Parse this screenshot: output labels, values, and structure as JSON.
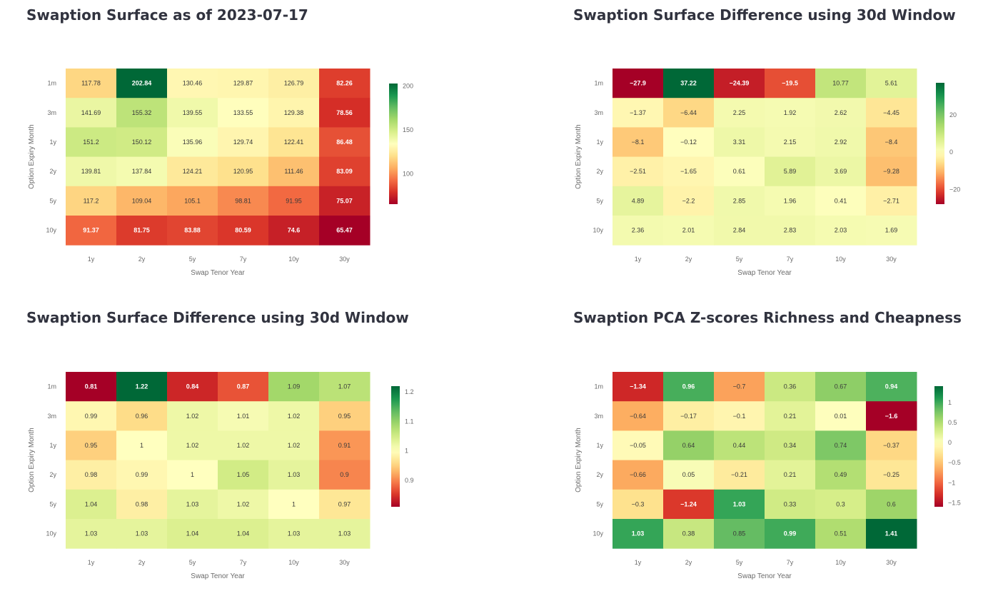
{
  "page": {
    "heatmaps": [
      {
        "id": "surface",
        "title": "Swaption Surface as of 2023-07-17",
        "vmin": 65.47,
        "vmax": 202.84,
        "vcenter": 134,
        "colorbar_ticks": [
          100,
          150,
          200
        ]
      },
      {
        "id": "diff-absolute",
        "title": "Swaption Surface Difference using 30d Window",
        "vmin": -27.9,
        "vmax": 37.22,
        "vcenter": 0,
        "colorbar_ticks": [
          -20,
          0,
          20
        ]
      },
      {
        "id": "diff-ratio",
        "title": "Swaption Surface Difference using 30d Window",
        "vmin": 0.81,
        "vmax": 1.22,
        "vcenter": 1,
        "colorbar_ticks": [
          0.9,
          1,
          1.1,
          1.2
        ]
      },
      {
        "id": "pca-zscores",
        "title": "Swaption PCA Z-scores Richness and Cheapness",
        "vmin": -1.6,
        "vmax": 1.41,
        "vcenter": 0,
        "colorbar_ticks": [
          -1.5,
          -1,
          -0.5,
          0,
          0.5,
          1
        ]
      }
    ]
  },
  "chart_data": [
    {
      "type": "heatmap",
      "title": "Swaption Surface as of 2023-07-17",
      "xlabel": "Swap Tenor Year",
      "ylabel": "Option Expiry Month",
      "x": [
        "1y",
        "2y",
        "5y",
        "7y",
        "10y",
        "30y"
      ],
      "y": [
        "1m",
        "3m",
        "1y",
        "2y",
        "5y",
        "10y"
      ],
      "z": [
        [
          117.78,
          202.84,
          130.46,
          129.87,
          126.79,
          82.26
        ],
        [
          141.69,
          155.32,
          139.55,
          133.55,
          129.38,
          78.56
        ],
        [
          151.2,
          150.12,
          135.96,
          129.74,
          122.41,
          86.48
        ],
        [
          139.81,
          137.84,
          124.21,
          120.95,
          111.46,
          83.09
        ],
        [
          117.2,
          109.04,
          105.1,
          98.81,
          91.95,
          75.07
        ],
        [
          91.37,
          81.75,
          83.88,
          80.59,
          74.6,
          65.47
        ]
      ],
      "colorscale": "RdYlGn",
      "colorbar_ticks": [
        100,
        150,
        200
      ]
    },
    {
      "type": "heatmap",
      "title": "Swaption Surface Difference using 30d Window",
      "xlabel": "Swap Tenor Year",
      "ylabel": "Option Expiry Month",
      "x": [
        "1y",
        "2y",
        "5y",
        "7y",
        "10y",
        "30y"
      ],
      "y": [
        "1m",
        "3m",
        "1y",
        "2y",
        "5y",
        "10y"
      ],
      "z": [
        [
          -27.9,
          37.22,
          -24.39,
          -19.5,
          10.77,
          5.61
        ],
        [
          -1.37,
          -6.44,
          2.25,
          1.92,
          2.62,
          -4.45
        ],
        [
          -8.1,
          -0.12,
          3.31,
          2.15,
          2.92,
          -8.4
        ],
        [
          -2.51,
          -1.65,
          0.61,
          5.89,
          3.69,
          -9.28
        ],
        [
          4.89,
          -2.2,
          2.85,
          1.96,
          0.41,
          -2.71
        ],
        [
          2.36,
          2.01,
          2.84,
          2.83,
          2.03,
          1.69
        ]
      ],
      "colorscale": "RdYlGn",
      "colorbar_ticks": [
        -20,
        0,
        20
      ]
    },
    {
      "type": "heatmap",
      "title": "Swaption Surface Difference using 30d Window",
      "xlabel": "Swap Tenor Year",
      "ylabel": "Option Expiry Month",
      "x": [
        "1y",
        "2y",
        "5y",
        "7y",
        "10y",
        "30y"
      ],
      "y": [
        "1m",
        "3m",
        "1y",
        "2y",
        "5y",
        "10y"
      ],
      "z": [
        [
          0.81,
          1.22,
          0.84,
          0.87,
          1.09,
          1.07
        ],
        [
          0.99,
          0.96,
          1.02,
          1.01,
          1.02,
          0.95
        ],
        [
          0.95,
          1,
          1.02,
          1.02,
          1.02,
          0.91
        ],
        [
          0.98,
          0.99,
          1,
          1.05,
          1.03,
          0.9
        ],
        [
          1.04,
          0.98,
          1.03,
          1.02,
          1,
          0.97
        ],
        [
          1.03,
          1.03,
          1.04,
          1.04,
          1.03,
          1.03
        ]
      ],
      "colorscale": "RdYlGn",
      "colorbar_ticks": [
        0.9,
        1,
        1.1,
        1.2
      ]
    },
    {
      "type": "heatmap",
      "title": "Swaption PCA Z-scores Richness and Cheapness",
      "xlabel": "Swap Tenor Year",
      "ylabel": "Option Expiry Month",
      "x": [
        "1y",
        "2y",
        "5y",
        "7y",
        "10y",
        "30y"
      ],
      "y": [
        "1m",
        "3m",
        "1y",
        "2y",
        "5y",
        "10y"
      ],
      "z": [
        [
          -1.34,
          0.96,
          -0.7,
          0.36,
          0.67,
          0.94
        ],
        [
          -0.64,
          -0.17,
          -0.1,
          0.21,
          0.01,
          -1.6
        ],
        [
          -0.05,
          0.64,
          0.44,
          0.34,
          0.74,
          -0.37
        ],
        [
          -0.66,
          0.05,
          -0.21,
          0.21,
          0.49,
          -0.25
        ],
        [
          -0.3,
          -1.24,
          1.03,
          0.33,
          0.3,
          0.6
        ],
        [
          1.03,
          0.38,
          0.85,
          0.99,
          0.51,
          1.41
        ]
      ],
      "colorscale": "RdYlGn",
      "colorbar_ticks": [
        -1.5,
        -1,
        -0.5,
        0,
        0.5,
        1
      ]
    }
  ]
}
